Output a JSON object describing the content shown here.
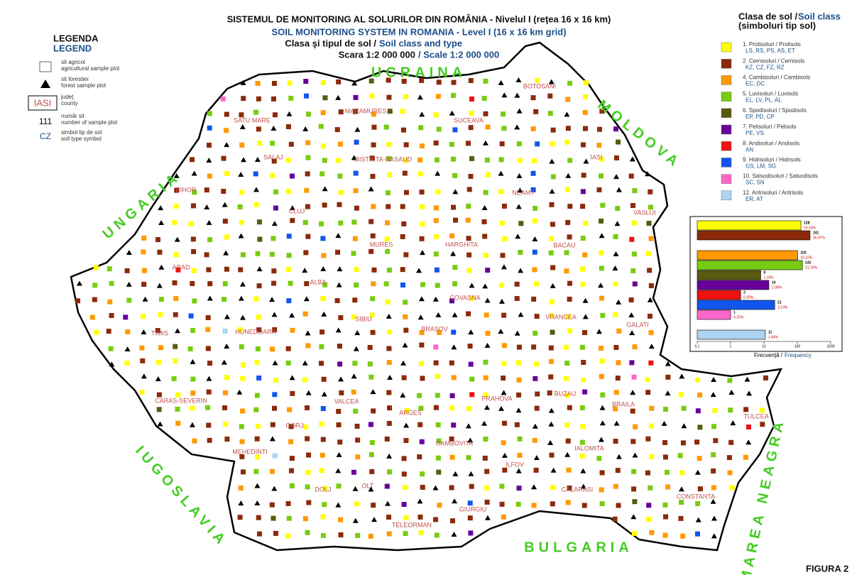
{
  "title": {
    "line1": "SISTEMUL DE MONITORING AL SOLURILOR DIN ROMÂNIA - Nivelul I (reţea 16 x 16 km)",
    "line2": "SOIL MONITORING SYSTEM IN ROMANIA - Level I (16 x 16 km grid)",
    "line3_ro": "Clasa şi tipul de sol /",
    "line3_en": "Soil class and type",
    "scale_ro": "Scara 1:2 000 000",
    "scale_en": "/ Scale 1:2 000 000"
  },
  "legend": {
    "title_ro": "LEGENDA",
    "title_en": "LEGEND",
    "items": [
      {
        "ro": "sit agricol",
        "en": "agricultural sample plot"
      },
      {
        "ro": "sit forestier",
        "en": "forest sample plot"
      },
      {
        "symbol": "IASI",
        "ro": "judeţ",
        "en": "county"
      },
      {
        "symbol": "111",
        "ro": "număr sit",
        "en": "number of sample plot"
      },
      {
        "symbol": "CZ",
        "ro": "simbol tip de sol",
        "en": "soil type symbol"
      }
    ]
  },
  "soil_classes": {
    "title_ro": "Clasa de sol /",
    "title_en": "Soil class",
    "subtitle": "(simboluri tip sol)",
    "items": [
      {
        "name": "1. Protisoluri / Protisols",
        "types": "LS, RS, PS, AS, ET",
        "color": "#ffff00"
      },
      {
        "name": "2. Cernisoluri / Cernisols",
        "types": "KZ, CZ, FZ, RZ",
        "color": "#8b2a0a"
      },
      {
        "name": "4. Cambisoluri / Cambisols",
        "types": "EC, DC",
        "color": "#ff9900"
      },
      {
        "name": "5. Luvisoluri / Luvisols",
        "types": "EL, LV, PL, AL",
        "color": "#77cc11"
      },
      {
        "name": "6. Spodisoluri / Spodisols",
        "types": "EP, PD, CP",
        "color": "#5a5a10"
      },
      {
        "name": "7. Pelisoluri / Pelisols",
        "types": "PE, VS",
        "color": "#660099"
      },
      {
        "name": "8. Andisoluri / Andisols",
        "types": "AN",
        "color": "#ee1111"
      },
      {
        "name": "9. Hidrisoluri / Hidrisols",
        "types": "GS, LM, SG",
        "color": "#1155ee"
      },
      {
        "name": "10. Salsodisoluri / Salsodisols",
        "types": "SC, SN",
        "color": "#ff66cc"
      },
      {
        "name": "12. Antrisoluri / Antrisols",
        "types": "ER, AT",
        "color": "#aad4f0"
      }
    ]
  },
  "neighbours": [
    "UCRAINA",
    "MOLDOVA",
    "UNGARIA",
    "IUGOSLAVIA",
    "BULGARIA",
    "MAREA NEAGRA"
  ],
  "counties": [
    "SATU MARE",
    "MARAMURES",
    "SUCEAVA",
    "BOTOSANI",
    "SALAJ",
    "BISTRITA-NASAUD",
    "IASI",
    "BIHOR",
    "CLUJ",
    "NEAMT",
    "VASLUI",
    "MURES",
    "HARGHITA",
    "BACAU",
    "ARAD",
    "ALBA",
    "SIBIU",
    "COVASNA",
    "BRASOV",
    "VRANCEA",
    "GALATI",
    "TIMIS",
    "HUNEDOARA",
    "CARAS-SEVERIN",
    "GORJ",
    "VALCEA",
    "ARGES",
    "PRAHOVA",
    "BUZAU",
    "BRAILA",
    "TULCEA",
    "MEHEDINTI",
    "DAMBOVITA",
    "IALOMITA",
    "ILFOV",
    "OLT",
    "DOLJ",
    "CALARASI",
    "CONSTANTA",
    "GIURGIU",
    "TELEORMAN"
  ],
  "figure": "FIGURA 2",
  "chart_data": {
    "type": "bar",
    "orientation": "horizontal",
    "log_scale": true,
    "values": [
      128,
      241,
      102,
      142,
      8,
      14,
      2,
      21,
      1,
      11
    ],
    "percents": [
      19.1,
      35.97,
      15.22,
      21.19,
      1.19,
      2.09,
      0.3,
      3.13,
      0.15,
      1.64
    ],
    "percent_labels": [
      "19.10%",
      "35.97%",
      "15.22%",
      "21.19%",
      "1.19%",
      "2.09%",
      "0.30%",
      "3.13%",
      "0.15%",
      "1.64%"
    ],
    "colors": [
      "#ffff00",
      "#8b2a0a",
      "#ff9900",
      "#77cc11",
      "#5a5a10",
      "#660099",
      "#ee1111",
      "#1155ee",
      "#ff66cc",
      "#aad4f0"
    ],
    "xlim": [
      0.1,
      1000
    ],
    "xticks": [
      0.1,
      1,
      10,
      100,
      1000
    ],
    "xlabel_ro": "Frecvenţă /",
    "xlabel_en": "Frequency"
  }
}
